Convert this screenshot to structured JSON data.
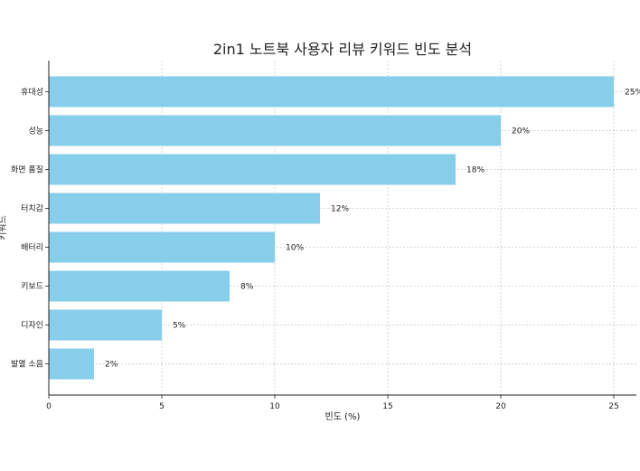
{
  "chart_data": {
    "type": "bar",
    "orientation": "horizontal",
    "title": "2in1 노트북 사용자 리뷰 키워드 빈도 분석",
    "xlabel": "빈도 (%)",
    "ylabel": "키워드",
    "categories": [
      "휴대성",
      "성능",
      "화면 품질",
      "터치감",
      "배터리",
      "키보드",
      "디자인",
      "발열 소음"
    ],
    "values": [
      25,
      20,
      18,
      12,
      10,
      8,
      5,
      2
    ],
    "value_labels": [
      "25%",
      "20%",
      "18%",
      "12%",
      "10%",
      "8%",
      "5%",
      "2%"
    ],
    "xlim": [
      0,
      26
    ],
    "xticks": [
      0,
      5,
      10,
      15,
      20,
      25
    ],
    "grid": true,
    "bar_color": "#87ceeb",
    "legend": "none"
  }
}
